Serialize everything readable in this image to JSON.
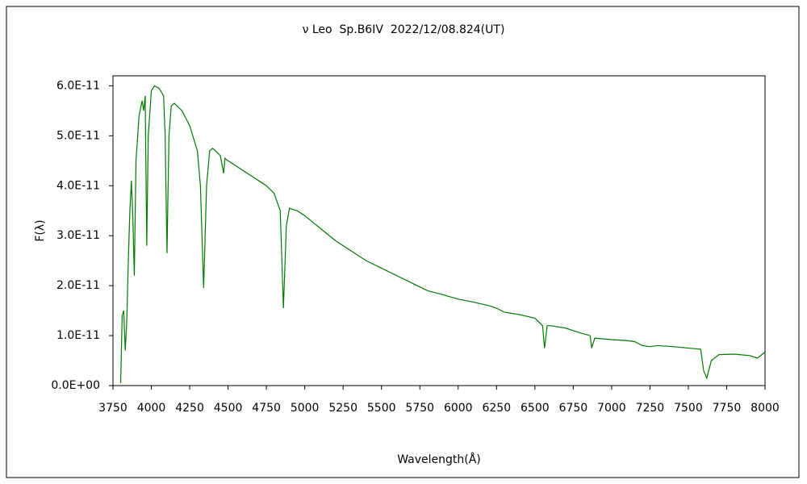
{
  "chart_data": {
    "type": "line",
    "title": "ν Leo  Sp.B6IV  2022/12/08.824(UT)",
    "xlabel": "Wavelength(Å)",
    "ylabel": "F(λ)",
    "series": [
      {
        "name": "ν Leo",
        "color": "#007a00",
        "x": [
          3800,
          3810,
          3820,
          3830,
          3840,
          3850,
          3860,
          3870,
          3880,
          3889,
          3900,
          3920,
          3940,
          3950,
          3960,
          3970,
          3980,
          4000,
          4020,
          4050,
          4080,
          4090,
          4102,
          4115,
          4130,
          4150,
          4200,
          4250,
          4300,
          4320,
          4341,
          4360,
          4380,
          4400,
          4450,
          4471,
          4480,
          4500,
          4550,
          4600,
          4700,
          4750,
          4800,
          4840,
          4861,
          4880,
          4900,
          4950,
          5000,
          5100,
          5200,
          5300,
          5400,
          5500,
          5600,
          5700,
          5800,
          5900,
          6000,
          6100,
          6200,
          6250,
          6300,
          6400,
          6500,
          6550,
          6563,
          6580,
          6600,
          6700,
          6800,
          6860,
          6870,
          6890,
          7000,
          7100,
          7150,
          7200,
          7250,
          7300,
          7400,
          7500,
          7580,
          7600,
          7620,
          7650,
          7700,
          7800,
          7900,
          7950,
          8000
        ],
        "values": [
          5e-13,
          1.4e-11,
          1.5e-11,
          7e-12,
          1.3e-11,
          2.5e-11,
          3.5e-11,
          4.1e-11,
          3.3e-11,
          2.2e-11,
          4.5e-11,
          5.4e-11,
          5.7e-11,
          5.5e-11,
          5.8e-11,
          2.8e-11,
          5e-11,
          5.9e-11,
          6e-11,
          5.95e-11,
          5.8e-11,
          5e-11,
          2.65e-11,
          5e-11,
          5.6e-11,
          5.65e-11,
          5.5e-11,
          5.2e-11,
          4.7e-11,
          4e-11,
          1.95e-11,
          4e-11,
          4.7e-11,
          4.75e-11,
          4.6e-11,
          4.25e-11,
          4.55e-11,
          4.5e-11,
          4.4e-11,
          4.3e-11,
          4.1e-11,
          4e-11,
          3.85e-11,
          3.5e-11,
          1.55e-11,
          3.2e-11,
          3.55e-11,
          3.5e-11,
          3.4e-11,
          3.15e-11,
          2.9e-11,
          2.7e-11,
          2.5e-11,
          2.35e-11,
          2.2e-11,
          2.05e-11,
          1.9e-11,
          1.82e-11,
          1.73e-11,
          1.67e-11,
          1.6e-11,
          1.55e-11,
          1.47e-11,
          1.42e-11,
          1.35e-11,
          1.2e-11,
          7.5e-12,
          1.2e-11,
          1.2e-11,
          1.15e-11,
          1.05e-11,
          1e-11,
          7.5e-12,
          9.5e-12,
          9.2e-12,
          9e-12,
          8.8e-12,
          8e-12,
          7.8e-12,
          8e-12,
          7.8e-12,
          7.5e-12,
          7.3e-12,
          3e-12,
          1.5e-12,
          5e-12,
          6.2e-12,
          6.3e-12,
          6e-12,
          5.5e-12,
          6.7e-12
        ]
      }
    ],
    "xlim": [
      3750,
      8000
    ],
    "xticks": [
      3750,
      4000,
      4250,
      4500,
      4750,
      5000,
      5250,
      5500,
      5750,
      6000,
      6250,
      6500,
      6750,
      7000,
      7250,
      7500,
      7750,
      8000
    ],
    "ylim": [
      0,
      6.2e-11
    ],
    "yticks": [
      {
        "value": 0,
        "label": "0.0E+00"
      },
      {
        "value": 1e-11,
        "label": "1.0E-11"
      },
      {
        "value": 2e-11,
        "label": "2.0E-11"
      },
      {
        "value": 3e-11,
        "label": "3.0E-11"
      },
      {
        "value": 4e-11,
        "label": "4.0E-11"
      },
      {
        "value": 5e-11,
        "label": "5.0E-11"
      },
      {
        "value": 6e-11,
        "label": "6.0E-11"
      }
    ],
    "grid": false
  }
}
